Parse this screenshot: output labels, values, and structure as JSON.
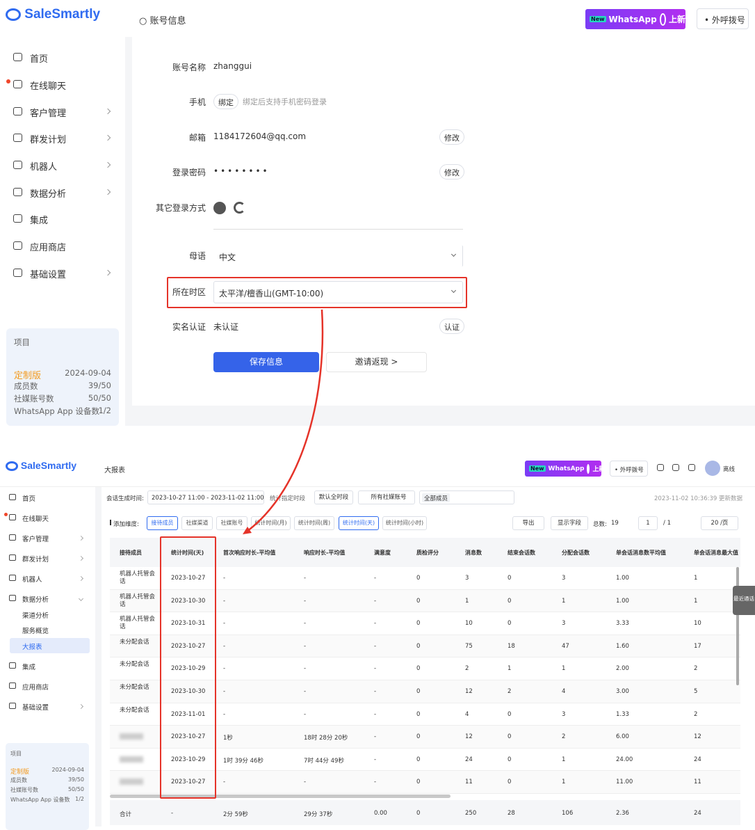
{
  "top": {
    "logo": "SaleSmartly",
    "page_title": "账号信息",
    "badge": {
      "new": "New",
      "app": "WhatsApp",
      "tag": "上新"
    },
    "dial": "外呼拨号",
    "menu": [
      "首页",
      "在线聊天",
      "客户管理",
      "群发计划",
      "机器人",
      "数据分析",
      "集成",
      "应用商店",
      "基础设置"
    ],
    "project": {
      "label": "项目",
      "plan": "定制版",
      "expiry": "2024-09-04",
      "stats": [
        {
          "label": "成员数",
          "value": "39/50"
        },
        {
          "label": "社媒账号数",
          "value": "50/50"
        },
        {
          "label": "WhatsApp App 设备数",
          "value": "1/2"
        }
      ]
    },
    "form": {
      "account_name": {
        "label": "账号名称",
        "value": "zhanggui"
      },
      "phone": {
        "label": "手机",
        "button": "绑定",
        "hint": "绑定后支持手机密码登录"
      },
      "email": {
        "label": "邮箱",
        "value": "1184172604@qq.com",
        "button": "修改"
      },
      "password": {
        "label": "登录密码",
        "value": "••••••••",
        "button": "修改"
      },
      "other_login": {
        "label": "其它登录方式"
      },
      "language": {
        "label": "母语",
        "value": "中文"
      },
      "timezone": {
        "label": "所在时区",
        "value": "太平洋/檀香山(GMT-10:00)"
      },
      "verification": {
        "label": "实名认证",
        "value": "未认证",
        "button": "认证"
      },
      "save": "保存信息",
      "invite": "邀请返现 >"
    }
  },
  "bottom": {
    "logo": "SaleSmartly",
    "page_title": "大报表",
    "badge": {
      "new": "New",
      "app": "WhatsApp",
      "tag": "上新"
    },
    "dial": "外呼拨号",
    "status": "离线",
    "menu": [
      "首页",
      "在线聊天",
      "客户管理",
      "群发计划",
      "机器人",
      "数据分析",
      "渠道分析",
      "服务概览",
      "大报表",
      "集成",
      "应用商店",
      "基础设置"
    ],
    "project": {
      "label": "项目",
      "plan": "定制版",
      "expiry": "2024-09-04",
      "stats": [
        {
          "label": "成员数",
          "value": "39/50"
        },
        {
          "label": "社媒账号数",
          "value": "50/50"
        },
        {
          "label": "WhatsApp App 设备数",
          "value": "1/2"
        }
      ]
    },
    "filters": {
      "label": "会话生成时间:",
      "range": "2023-10-27 11:00 - 2023-11-02 11:00",
      "period": "统计指定时段",
      "all_time": "默认全时段",
      "accounts": "所有社媒账号",
      "members": "全部成员",
      "updated": "2023-11-02 10:36:39 更新数据"
    },
    "dimensions": {
      "label": "添加维度:",
      "chips": [
        "接待成员",
        "社媒渠道",
        "社媒账号",
        "统计时间(月)",
        "统计时间(周)",
        "统计时间(天)",
        "统计时间(小时)"
      ]
    },
    "toolbar": {
      "export": "导出",
      "fields": "显示字段",
      "total_label": "总数:",
      "total": 19,
      "page": 1,
      "pages": "/ 1",
      "page_size": "20 /页"
    },
    "side_tab": "最近通话",
    "table": {
      "headers": [
        "接待成员",
        "统计时间(天)",
        "首次响应时长-平均值",
        "响应时长-平均值",
        "满意度",
        "质检评分",
        "消息数",
        "结束会话数",
        "分配会话数",
        "单会话消息数平均值",
        "单会话消息最大值"
      ],
      "rows": [
        [
          "机器人托管会话",
          "2023-10-27",
          "-",
          "-",
          "-",
          "0",
          "3",
          "0",
          "3",
          "1.00",
          "1"
        ],
        [
          "机器人托管会话",
          "2023-10-30",
          "-",
          "-",
          "-",
          "0",
          "1",
          "0",
          "1",
          "1.00",
          "1"
        ],
        [
          "机器人托管会话",
          "2023-10-31",
          "-",
          "-",
          "-",
          "0",
          "10",
          "0",
          "3",
          "3.33",
          "10"
        ],
        [
          "未分配会话",
          "2023-10-27",
          "-",
          "-",
          "-",
          "0",
          "75",
          "18",
          "47",
          "1.60",
          "17"
        ],
        [
          "未分配会话",
          "2023-10-29",
          "-",
          "-",
          "-",
          "0",
          "2",
          "1",
          "1",
          "2.00",
          "2"
        ],
        [
          "未分配会话",
          "2023-10-30",
          "-",
          "-",
          "-",
          "0",
          "12",
          "2",
          "4",
          "3.00",
          "5"
        ],
        [
          "未分配会话",
          "2023-11-01",
          "-",
          "-",
          "-",
          "0",
          "4",
          "0",
          "3",
          "1.33",
          "2"
        ],
        [
          null,
          "2023-10-27",
          "1秒",
          "18时 28分 20秒",
          "-",
          "0",
          "12",
          "0",
          "2",
          "6.00",
          "12"
        ],
        [
          null,
          "2023-10-29",
          "1时 39分 46秒",
          "7时 44分 49秒",
          "-",
          "0",
          "24",
          "0",
          "1",
          "24.00",
          "24"
        ],
        [
          null,
          "2023-10-27",
          "-",
          "-",
          "-",
          "0",
          "11",
          "0",
          "1",
          "11.00",
          "11"
        ]
      ],
      "total": [
        "合计",
        "-",
        "2分 59秒",
        "29分 37秒",
        "0.00",
        "0",
        "250",
        "28",
        "106",
        "2.36",
        "24"
      ]
    }
  }
}
